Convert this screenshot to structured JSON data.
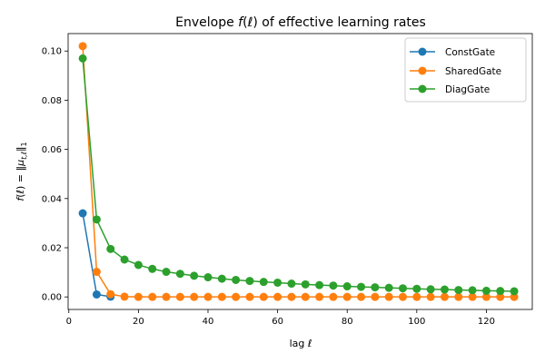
{
  "chart_data": {
    "type": "line",
    "title_parts": {
      "prefix": "Envelope ",
      "func": "f",
      "paren_open": "(",
      "var": "ℓ",
      "paren_close": ")",
      "suffix": " of effective learning rates"
    },
    "xlabel_parts": {
      "prefix": "lag ",
      "var": "ℓ"
    },
    "ylabel_parts": {
      "lhs_f": "f",
      "lhs_open": "(",
      "lhs_var": "ℓ",
      "lhs_close": ")",
      "eq": " = ",
      "norm_open": "‖",
      "mu": "μ",
      "sub": "t,ℓ",
      "norm_close": "‖",
      "norm_sub": "1"
    },
    "xlim": [
      -0.2,
      133.2
    ],
    "ylim": [
      -0.0051,
      0.1071
    ],
    "xticks": [
      0,
      20,
      40,
      60,
      80,
      100,
      120
    ],
    "xtick_labels": [
      "0",
      "20",
      "40",
      "60",
      "80",
      "100",
      "120"
    ],
    "yticks": [
      0.0,
      0.02,
      0.04,
      0.06,
      0.08,
      0.1
    ],
    "ytick_labels": [
      "0.00",
      "0.02",
      "0.04",
      "0.06",
      "0.08",
      "0.10"
    ],
    "grid": false,
    "legend_position": "top-right",
    "x": [
      4,
      8,
      12,
      16,
      20,
      24,
      28,
      32,
      36,
      40,
      44,
      48,
      52,
      56,
      60,
      64,
      68,
      72,
      76,
      80,
      84,
      88,
      92,
      96,
      100,
      104,
      108,
      112,
      116,
      120,
      124,
      128
    ],
    "series": [
      {
        "name": "ConstGate",
        "color": "#1f77b4",
        "x": [
          4,
          8,
          12
        ],
        "values": [
          0.034,
          0.001,
          0.0001
        ]
      },
      {
        "name": "SharedGate",
        "color": "#ff7f0e",
        "values": [
          0.102,
          0.0102,
          0.0011,
          0.0001,
          0.0,
          0.0,
          0.0,
          0.0,
          0.0,
          0.0,
          0.0,
          0.0,
          0.0,
          0.0,
          0.0,
          0.0,
          0.0,
          0.0,
          0.0,
          0.0,
          0.0,
          0.0,
          0.0,
          0.0,
          0.0,
          0.0,
          0.0,
          0.0,
          0.0,
          0.0,
          0.0,
          0.0
        ]
      },
      {
        "name": "DiagGate",
        "color": "#2ca02c",
        "values": [
          0.097,
          0.0315,
          0.0195,
          0.0152,
          0.013,
          0.0114,
          0.0102,
          0.0094,
          0.0086,
          0.008,
          0.0074,
          0.0069,
          0.0065,
          0.0061,
          0.0058,
          0.0054,
          0.0051,
          0.0048,
          0.0046,
          0.0043,
          0.0041,
          0.0039,
          0.0037,
          0.0035,
          0.0033,
          0.0031,
          0.003,
          0.0028,
          0.0027,
          0.0025,
          0.0024,
          0.0023
        ]
      }
    ]
  }
}
